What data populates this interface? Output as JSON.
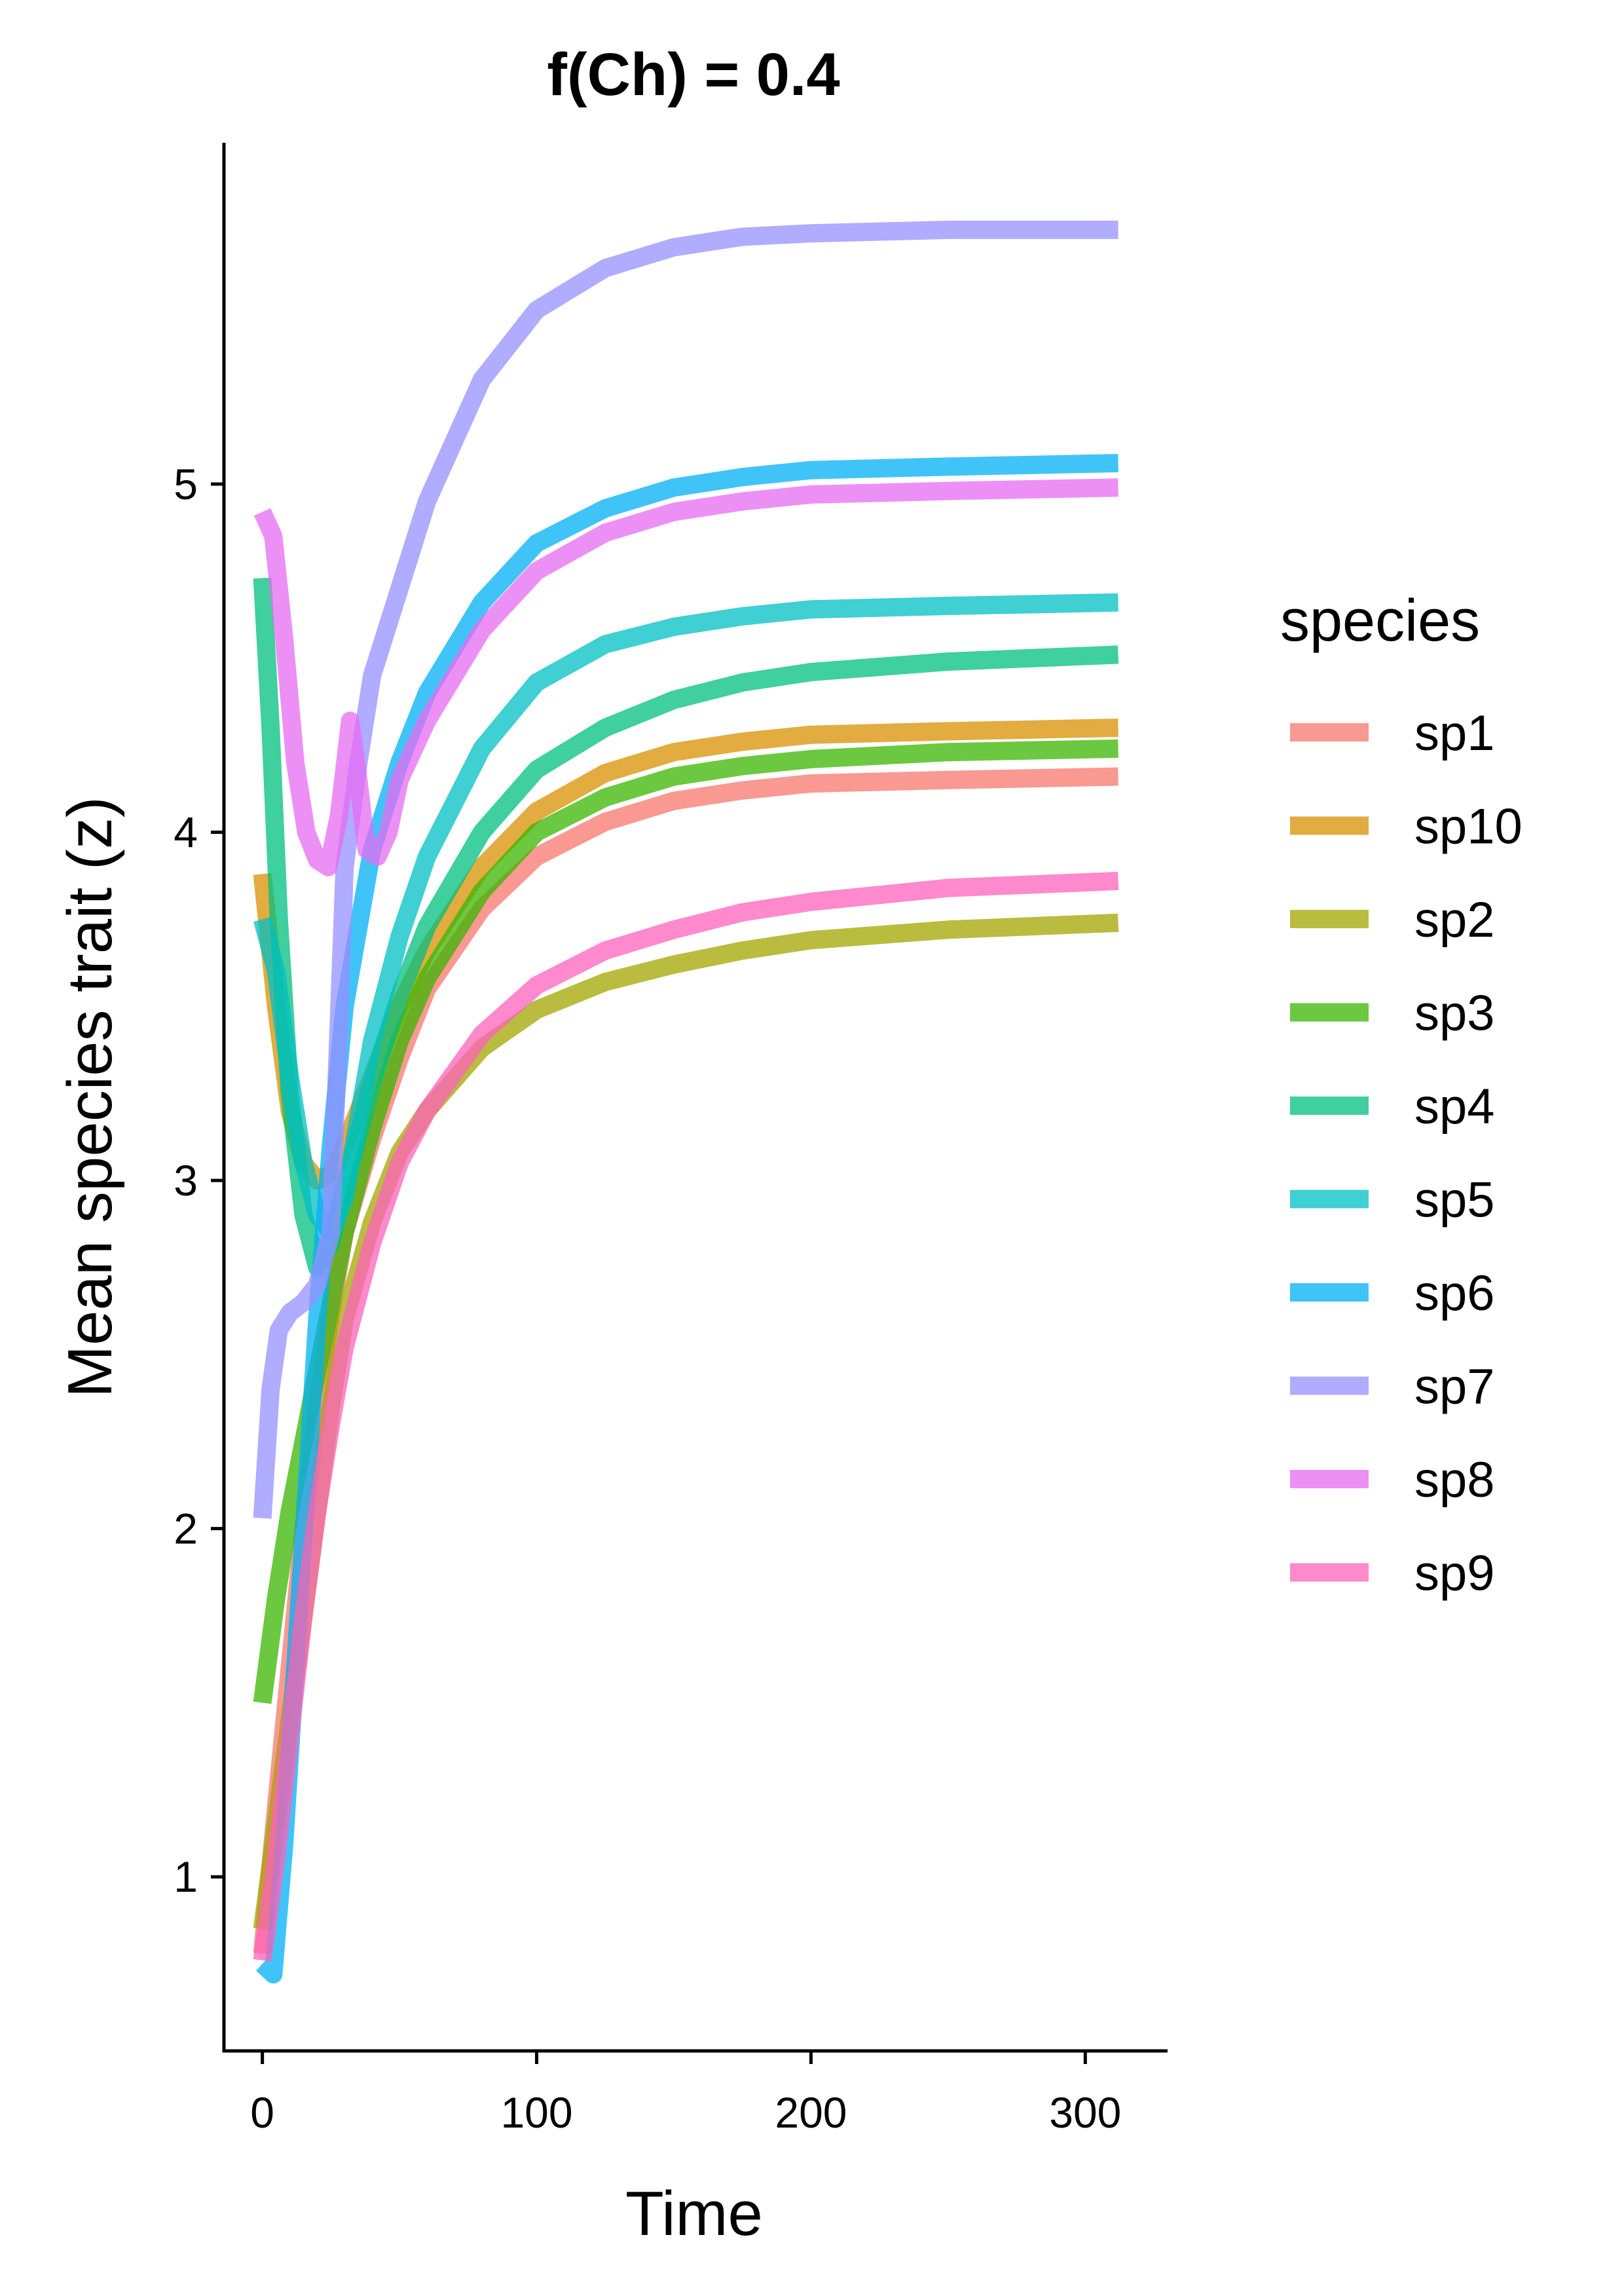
{
  "chart_data": {
    "type": "line",
    "title": "f(Ch) =  0.4",
    "xlabel": "Time",
    "ylabel": "Mean species trait (z)",
    "xlim": [
      -14,
      330
    ],
    "ylim": [
      0.5,
      5.98
    ],
    "xticks": [
      0,
      100,
      200,
      300
    ],
    "yticks": [
      1,
      2,
      3,
      4,
      5
    ],
    "grid": false,
    "legend": {
      "title": "species",
      "placement": "right"
    },
    "series": [
      {
        "name": "sp1",
        "color": "#F8766D",
        "x": [
          0,
          5,
          10,
          15,
          20,
          25,
          30,
          40,
          50,
          60,
          80,
          100,
          125,
          150,
          175,
          200,
          250,
          312
        ],
        "y": [
          0.78,
          1.2,
          1.6,
          2.0,
          2.35,
          2.62,
          2.85,
          3.12,
          3.35,
          3.55,
          3.78,
          3.93,
          4.03,
          4.09,
          4.12,
          4.14,
          4.15,
          4.16
        ]
      },
      {
        "name": "sp10",
        "color": "#D89000",
        "x": [
          0,
          5,
          10,
          15,
          20,
          25,
          30,
          40,
          50,
          60,
          80,
          100,
          125,
          150,
          175,
          200,
          250,
          312
        ],
        "y": [
          3.88,
          3.5,
          3.2,
          3.05,
          3.0,
          3.02,
          3.1,
          3.3,
          3.5,
          3.66,
          3.9,
          4.06,
          4.17,
          4.23,
          4.26,
          4.28,
          4.29,
          4.3
        ]
      },
      {
        "name": "sp2",
        "color": "#A3A500",
        "x": [
          0,
          5,
          10,
          15,
          20,
          25,
          30,
          40,
          50,
          60,
          80,
          100,
          125,
          150,
          175,
          200,
          250,
          312
        ],
        "y": [
          0.85,
          1.15,
          1.45,
          1.75,
          2.05,
          2.35,
          2.6,
          2.88,
          3.08,
          3.2,
          3.38,
          3.49,
          3.57,
          3.62,
          3.66,
          3.69,
          3.72,
          3.74
        ]
      },
      {
        "name": "sp3",
        "color": "#39B600",
        "x": [
          0,
          5,
          10,
          15,
          20,
          25,
          30,
          40,
          50,
          60,
          80,
          100,
          125,
          150,
          175,
          200,
          250,
          312
        ],
        "y": [
          1.5,
          1.8,
          2.05,
          2.25,
          2.45,
          2.65,
          2.85,
          3.15,
          3.4,
          3.58,
          3.83,
          4.0,
          4.1,
          4.16,
          4.19,
          4.21,
          4.23,
          4.24
        ]
      },
      {
        "name": "sp4",
        "color": "#00BF7D",
        "x": [
          0,
          3,
          6,
          10,
          15,
          20,
          25,
          30,
          40,
          50,
          60,
          80,
          100,
          125,
          150,
          175,
          200,
          250,
          312
        ],
        "y": [
          4.73,
          4.3,
          3.75,
          3.25,
          2.9,
          2.75,
          2.82,
          2.98,
          3.28,
          3.53,
          3.73,
          4.0,
          4.18,
          4.3,
          4.38,
          4.43,
          4.46,
          4.49,
          4.51
        ]
      },
      {
        "name": "sp5",
        "color": "#00BFC4",
        "x": [
          0,
          5,
          10,
          15,
          20,
          25,
          30,
          40,
          50,
          60,
          80,
          100,
          125,
          150,
          175,
          200,
          250,
          312
        ],
        "y": [
          3.75,
          3.6,
          3.3,
          3.05,
          2.9,
          2.85,
          2.95,
          3.4,
          3.7,
          3.93,
          4.24,
          4.43,
          4.54,
          4.59,
          4.62,
          4.64,
          4.65,
          4.66
        ]
      },
      {
        "name": "sp6",
        "color": "#00B0F6",
        "x": [
          0,
          4,
          8,
          12,
          16,
          20,
          25,
          30,
          40,
          50,
          60,
          80,
          100,
          125,
          150,
          175,
          200,
          250,
          312
        ],
        "y": [
          0.75,
          0.72,
          1.1,
          1.6,
          2.1,
          2.6,
          3.1,
          3.5,
          3.95,
          4.2,
          4.4,
          4.66,
          4.83,
          4.93,
          4.99,
          5.02,
          5.04,
          5.05,
          5.06
        ]
      },
      {
        "name": "sp7",
        "color": "#9590FF",
        "x": [
          0,
          3,
          6,
          10,
          15,
          20,
          25,
          30,
          35,
          40,
          50,
          60,
          80,
          100,
          125,
          150,
          175,
          200,
          250,
          312
        ],
        "y": [
          2.03,
          2.4,
          2.57,
          2.62,
          2.65,
          2.7,
          2.85,
          3.9,
          4.2,
          4.45,
          4.7,
          4.95,
          5.3,
          5.5,
          5.62,
          5.68,
          5.71,
          5.72,
          5.73,
          5.73
        ]
      },
      {
        "name": "sp8",
        "color": "#E76BF3",
        "x": [
          0,
          4,
          8,
          12,
          16,
          20,
          24,
          28,
          32,
          35,
          38,
          42,
          46,
          50,
          60,
          80,
          100,
          125,
          150,
          175,
          200,
          250,
          312
        ],
        "y": [
          4.92,
          4.85,
          4.55,
          4.2,
          4.0,
          3.92,
          3.9,
          4.05,
          4.32,
          4.15,
          3.95,
          3.93,
          4.0,
          4.15,
          4.32,
          4.58,
          4.75,
          4.86,
          4.92,
          4.95,
          4.97,
          4.98,
          4.99
        ]
      },
      {
        "name": "sp9",
        "color": "#FF62BC",
        "x": [
          0,
          5,
          10,
          15,
          20,
          25,
          30,
          40,
          50,
          60,
          80,
          100,
          125,
          150,
          175,
          200,
          250,
          312
        ],
        "y": [
          0.76,
          1.05,
          1.4,
          1.75,
          2.05,
          2.3,
          2.52,
          2.82,
          3.05,
          3.2,
          3.42,
          3.56,
          3.66,
          3.72,
          3.77,
          3.8,
          3.84,
          3.86
        ]
      }
    ]
  }
}
